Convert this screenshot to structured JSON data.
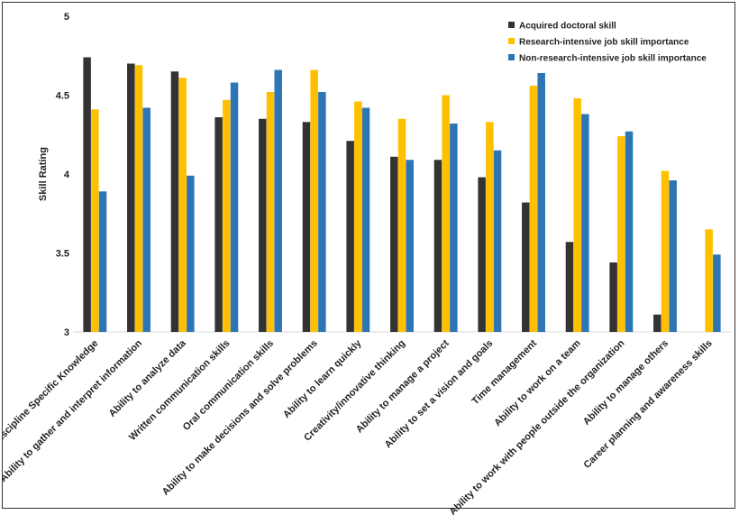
{
  "chart_data": {
    "type": "bar",
    "title": "",
    "xlabel": "",
    "ylabel": "Skill Rating",
    "ylim": [
      3,
      5
    ],
    "yticks": [
      "3",
      "3.5",
      "4",
      "4.5",
      "5"
    ],
    "grid": false,
    "legend_position": "top-right",
    "categories": [
      "Discipline Specific Knowledge",
      "Ability to gather and interpret information",
      "Ability to analyze data",
      "Written communication skills",
      "Oral communication skills",
      "Ability to make decisions and solve problems",
      "Ability to learn quickly",
      "Creativity/innovative thinking",
      "Ability to manage a project",
      "Ability to set a vision and goals",
      "Time management",
      "Ability to work on a team",
      "Ability to work with people outside the organization",
      "Ability to manage others",
      "Career planning and awareness skills"
    ],
    "series": [
      {
        "name": "Acquired doctoral skill",
        "color": "#333333",
        "values": [
          4.74,
          4.7,
          4.65,
          4.36,
          4.35,
          4.33,
          4.21,
          4.11,
          4.09,
          3.98,
          3.82,
          3.57,
          3.44,
          3.11,
          null
        ]
      },
      {
        "name": "Research-intensive job skill importance",
        "color": "#FFC000",
        "values": [
          4.41,
          4.69,
          4.61,
          4.47,
          4.52,
          4.66,
          4.46,
          4.35,
          4.5,
          4.33,
          4.56,
          4.48,
          4.24,
          4.02,
          3.65
        ]
      },
      {
        "name": "Non-research-intensive job skill importance",
        "color": "#2E75B6",
        "values": [
          3.89,
          4.42,
          3.99,
          4.58,
          4.66,
          4.52,
          4.42,
          4.09,
          4.32,
          4.15,
          4.64,
          4.38,
          4.27,
          3.96,
          3.49
        ]
      }
    ]
  }
}
